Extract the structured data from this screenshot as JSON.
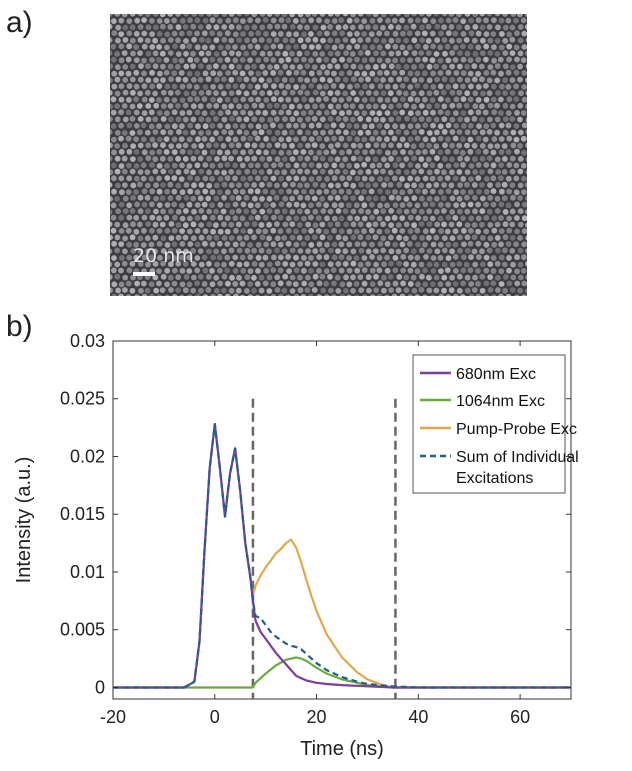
{
  "panel_a": {
    "label": "a)",
    "scale_bar": "20 nm"
  },
  "panel_b": {
    "label": "b)"
  },
  "chart_data": {
    "type": "line",
    "title": "",
    "xlabel": "Time (ns)",
    "ylabel": "Intensity (a.u.)",
    "xlim": [
      -20,
      70
    ],
    "ylim": [
      -0.001,
      0.03
    ],
    "xticks": [
      -20,
      0,
      20,
      40,
      60
    ],
    "xtick_labels": [
      "-20",
      "0",
      "20",
      "40",
      "60"
    ],
    "yticks": [
      0,
      0.005,
      0.01,
      0.015,
      0.02,
      0.025,
      0.03
    ],
    "ytick_labels": [
      "0",
      "0.005",
      "0.01",
      "0.015",
      "0.02",
      "0.025",
      "0.03"
    ],
    "grid": false,
    "legend_position": "top-right",
    "vertical_markers": [
      7.5,
      35.5
    ],
    "series": [
      {
        "name": "680nm Exc",
        "color": "#7b3f98",
        "style": "solid",
        "x": [
          -20,
          -10,
          -6,
          -4,
          -3,
          -2,
          -1,
          0,
          1,
          2,
          3,
          4,
          5,
          6,
          7,
          7.5,
          8,
          9,
          10,
          11,
          12,
          13,
          14,
          15,
          16,
          17,
          18,
          20,
          22,
          25,
          30,
          35,
          40,
          50,
          60,
          70
        ],
        "y": [
          0,
          0,
          0,
          0.0005,
          0.004,
          0.012,
          0.019,
          0.0228,
          0.019,
          0.0148,
          0.0185,
          0.0207,
          0.017,
          0.0125,
          0.0095,
          0.0075,
          0.0058,
          0.0048,
          0.0042,
          0.0036,
          0.003,
          0.0025,
          0.002,
          0.0015,
          0.001,
          0.0008,
          0.0006,
          0.0004,
          0.0003,
          0.0002,
          0.0001,
          0,
          0,
          0,
          0,
          0
        ]
      },
      {
        "name": "1064nm Exc",
        "color": "#6aab3f",
        "style": "solid",
        "x": [
          -20,
          0,
          5,
          7.5,
          8,
          10,
          12,
          14,
          15,
          16,
          17,
          18,
          19,
          20,
          22,
          25,
          28,
          30,
          35,
          40,
          50,
          60,
          70
        ],
        "y": [
          0,
          0,
          0,
          0,
          0.0004,
          0.0012,
          0.0019,
          0.0024,
          0.0025,
          0.0026,
          0.0025,
          0.0023,
          0.002,
          0.0017,
          0.0012,
          0.0007,
          0.0004,
          0.0002,
          0,
          0,
          0,
          0,
          0
        ]
      },
      {
        "name": "Pump-Probe Exc",
        "color": "#e0a84a",
        "style": "solid",
        "x": [
          -20,
          -10,
          -6,
          -4,
          -3,
          -2,
          -1,
          0,
          1,
          2,
          3,
          4,
          5,
          6,
          7,
          7.5,
          8,
          9,
          10,
          11,
          12,
          13,
          14,
          15,
          16,
          17,
          18,
          19,
          20,
          22,
          25,
          28,
          30,
          33,
          35,
          40,
          50,
          60,
          70
        ],
        "y": [
          0,
          0,
          0,
          0.0005,
          0.004,
          0.012,
          0.019,
          0.0228,
          0.019,
          0.0148,
          0.0185,
          0.0207,
          0.017,
          0.0125,
          0.0095,
          0.008,
          0.0088,
          0.0097,
          0.0104,
          0.011,
          0.0116,
          0.012,
          0.0125,
          0.0128,
          0.0121,
          0.0108,
          0.0093,
          0.0079,
          0.0066,
          0.0046,
          0.0026,
          0.0013,
          0.0007,
          0.0002,
          0,
          0,
          0,
          0,
          0
        ]
      },
      {
        "name": "Sum of Individual Excitations",
        "color": "#1f5f8b",
        "style": "dashed",
        "x": [
          -20,
          -10,
          -6,
          -4,
          -3,
          -2,
          -1,
          0,
          1,
          2,
          3,
          4,
          5,
          6,
          7,
          7.5,
          8,
          9,
          10,
          11,
          12,
          13,
          14,
          15,
          16,
          17,
          18,
          19,
          20,
          22,
          25,
          28,
          30,
          35,
          40,
          50,
          60,
          70
        ],
        "y": [
          0,
          0,
          0,
          0.0005,
          0.004,
          0.012,
          0.019,
          0.0228,
          0.019,
          0.0148,
          0.0185,
          0.0207,
          0.017,
          0.0125,
          0.0095,
          0.0075,
          0.0062,
          0.006,
          0.0054,
          0.0048,
          0.0044,
          0.0041,
          0.0038,
          0.0036,
          0.0035,
          0.0033,
          0.0029,
          0.0025,
          0.0021,
          0.0015,
          0.0009,
          0.0005,
          0.0003,
          0.0001,
          0,
          0,
          0,
          0
        ]
      }
    ],
    "legend": [
      {
        "label": "680nm Exc",
        "color": "#7b3f98"
      },
      {
        "label": "1064nm Exc",
        "color": "#6aab3f"
      },
      {
        "label": "Pump-Probe Exc",
        "color": "#e0a84a"
      },
      {
        "label": "Sum of Individual",
        "label_line2": "Excitations",
        "color": "#1f5f8b"
      }
    ]
  }
}
